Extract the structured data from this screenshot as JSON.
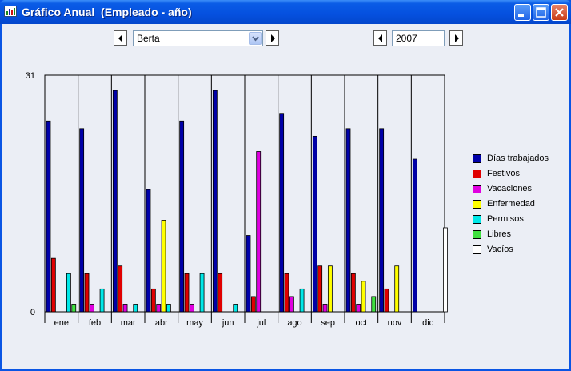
{
  "window": {
    "title": "Gráfico Anual  (Empleado - año)",
    "title_bar_color": "#0a55e4",
    "icons": [
      "chart-icon",
      "minimize-icon",
      "maximize-icon",
      "close-icon"
    ]
  },
  "employee_selector": {
    "value": "Berta"
  },
  "year_selector": {
    "value": "2007"
  },
  "chart_data": {
    "type": "bar",
    "categories": [
      "ene",
      "feb",
      "mar",
      "abr",
      "may",
      "jun",
      "jul",
      "ago",
      "sep",
      "oct",
      "nov",
      "dic"
    ],
    "y_tick_labels": [
      "0",
      "31"
    ],
    "ylim": [
      0,
      31
    ],
    "grid": "vertical month separators",
    "legend_position": "right",
    "series": [
      {
        "name": "Días trabajados",
        "color": "#0000a8",
        "values": [
          25,
          24,
          29,
          16,
          25,
          29,
          10,
          26,
          23,
          24,
          24,
          20
        ]
      },
      {
        "name": "Festivos",
        "color": "#e00000",
        "values": [
          7,
          5,
          6,
          3,
          5,
          5,
          2,
          5,
          6,
          5,
          3,
          0
        ]
      },
      {
        "name": "Vacaciones",
        "color": "#e000e0",
        "values": [
          0,
          1,
          1,
          1,
          1,
          0,
          21,
          2,
          1,
          1,
          0,
          0
        ]
      },
      {
        "name": "Enfermedad",
        "color": "#ffff00",
        "values": [
          0,
          0,
          0,
          12,
          0,
          0,
          0,
          0,
          6,
          4,
          6,
          0
        ]
      },
      {
        "name": "Permisos",
        "color": "#00e8e8",
        "values": [
          5,
          3,
          1,
          1,
          5,
          1,
          0,
          3,
          0,
          0,
          0,
          0
        ]
      },
      {
        "name": "Libres",
        "color": "#40e040",
        "values": [
          1,
          0,
          0,
          0,
          0,
          0,
          0,
          0,
          0,
          2,
          0,
          0
        ]
      },
      {
        "name": "Vacíos",
        "color": "#ffffff",
        "values": [
          0,
          0,
          0,
          0,
          0,
          0,
          0,
          0,
          0,
          0,
          0,
          11
        ]
      }
    ]
  }
}
